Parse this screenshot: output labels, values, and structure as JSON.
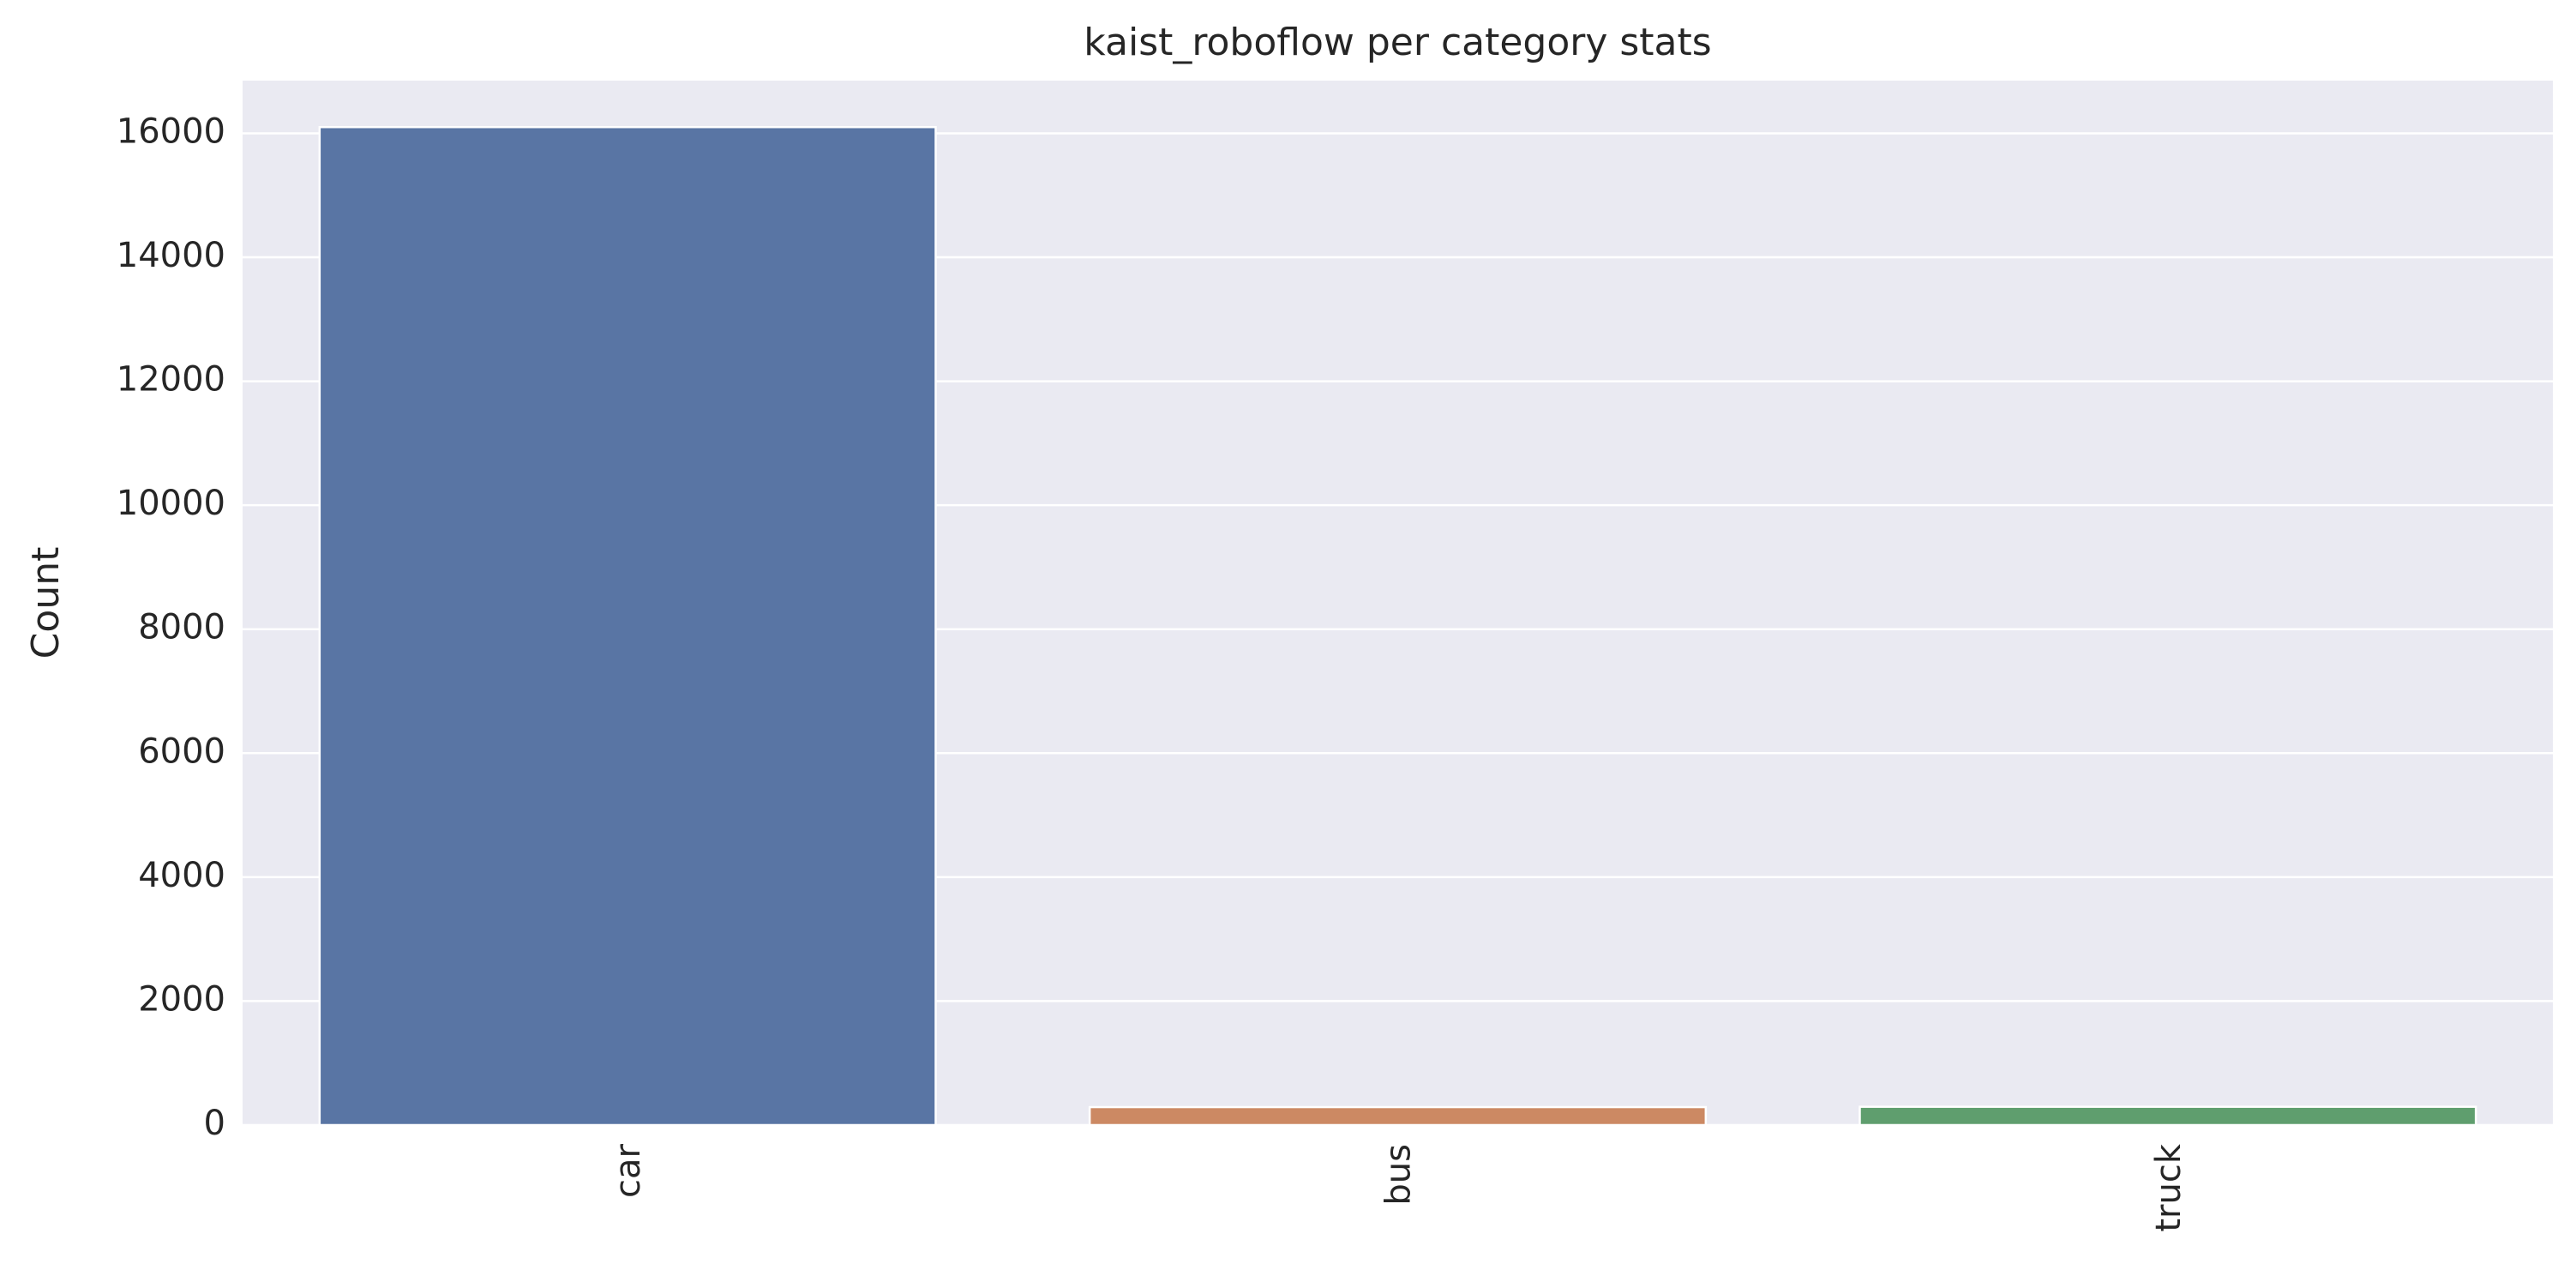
{
  "chart_data": {
    "type": "bar",
    "title": "kaist_roboflow per category stats",
    "xlabel": "",
    "ylabel": "Count",
    "categories": [
      "car",
      "bus",
      "truck"
    ],
    "values": [
      16100,
      290,
      295
    ],
    "ylim": [
      0,
      16850
    ],
    "yticks": [
      0,
      2000,
      4000,
      6000,
      8000,
      10000,
      12000,
      14000,
      16000
    ],
    "grid": true,
    "x_tick_rotation": "vertical",
    "colors": [
      "#5975a4",
      "#cc8963",
      "#5f9e6e"
    ],
    "background_color": "#eaeaf2",
    "grid_color": "#ffffff"
  }
}
